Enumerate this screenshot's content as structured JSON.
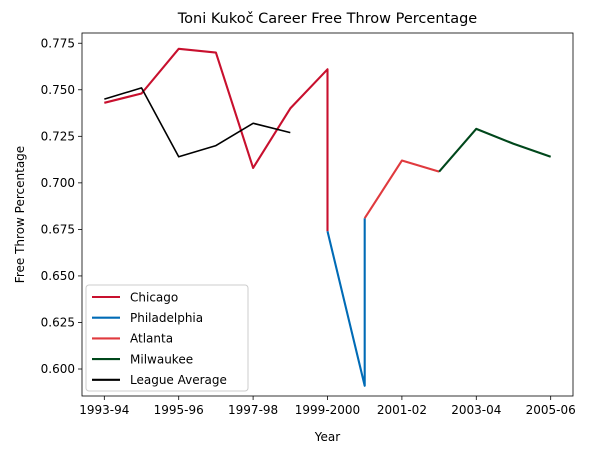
{
  "chart_data": {
    "type": "line",
    "title": "Toni Kukoč Career Free Throw Percentage",
    "xlabel": "Year",
    "ylabel": "Free Throw Percentage",
    "xlim": [
      -0.6,
      12.6
    ],
    "ylim": [
      0.5855,
      0.7805
    ],
    "grid": false,
    "legend_position": "lower-left",
    "x_ticks": [
      {
        "x": 0,
        "label": "1993-94"
      },
      {
        "x": 2,
        "label": "1995-96"
      },
      {
        "x": 4,
        "label": "1997-98"
      },
      {
        "x": 6,
        "label": "1999-2000"
      },
      {
        "x": 8,
        "label": "2001-02"
      },
      {
        "x": 10,
        "label": "2003-04"
      },
      {
        "x": 12,
        "label": "2005-06"
      }
    ],
    "y_ticks": [
      0.6,
      0.625,
      0.65,
      0.675,
      0.7,
      0.725,
      0.75,
      0.775
    ],
    "y_tick_labels": [
      "0.600",
      "0.625",
      "0.650",
      "0.675",
      "0.700",
      "0.725",
      "0.750",
      "0.775"
    ],
    "series": [
      {
        "name": "Chicago",
        "color": "#C8102E",
        "x": [
          0,
          1,
          2,
          3,
          4,
          5,
          6,
          6
        ],
        "y": [
          0.743,
          0.748,
          0.772,
          0.77,
          0.708,
          0.74,
          0.761,
          0.674
        ]
      },
      {
        "name": "Philadelphia",
        "color": "#006BB6",
        "x": [
          6,
          7,
          7
        ],
        "y": [
          0.674,
          0.591,
          0.681
        ]
      },
      {
        "name": "Atlanta",
        "color": "#E03A3E",
        "x": [
          7,
          8,
          9
        ],
        "y": [
          0.681,
          0.712,
          0.706
        ]
      },
      {
        "name": "Milwaukee",
        "color": "#00471B",
        "x": [
          9,
          10,
          11,
          12
        ],
        "y": [
          0.706,
          0.729,
          0.721,
          0.714
        ]
      },
      {
        "name": "League Average",
        "color": "#000000",
        "x": [
          0,
          1,
          2,
          3,
          4,
          5
        ],
        "y": [
          0.745,
          0.751,
          0.714,
          0.72,
          0.732,
          0.727
        ]
      }
    ]
  }
}
